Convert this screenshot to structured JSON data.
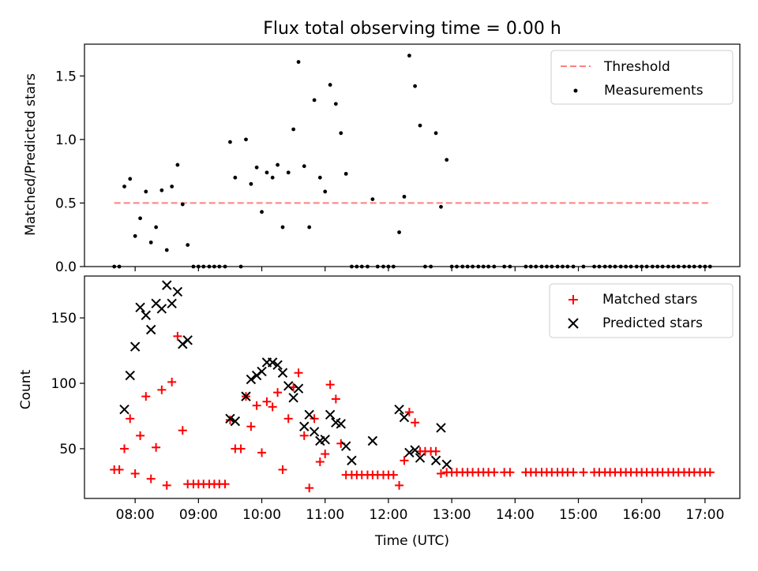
{
  "chart_data": [
    {
      "type": "scatter",
      "title": "Flux total observing time = 0.00 h",
      "xlabel": "",
      "ylabel": "Matched/Predicted stars",
      "xlim": [
        7.2,
        17.55
      ],
      "ylim": [
        0,
        1.75
      ],
      "xticks": [
        8,
        9,
        10,
        11,
        12,
        13,
        14,
        15,
        16,
        17
      ],
      "xtick_labels": [],
      "yticks": [
        0.0,
        0.5,
        1.0,
        1.5
      ],
      "ytick_labels": [
        "0.0",
        "0.5",
        "1.0",
        "1.5"
      ],
      "legend_position": "top-right",
      "threshold": {
        "name": "Threshold",
        "value": 0.5,
        "x": [
          7.67,
          17.1
        ],
        "color": "#ff7f7f"
      },
      "series": [
        {
          "name": "Measurements",
          "marker": "dot",
          "color": "#000000",
          "points": [
            [
              7.67,
              0
            ],
            [
              7.75,
              0
            ],
            [
              7.83,
              0.63
            ],
            [
              7.92,
              0.69
            ],
            [
              8.0,
              0.24
            ],
            [
              8.08,
              0.38
            ],
            [
              8.17,
              0.59
            ],
            [
              8.25,
              0.19
            ],
            [
              8.33,
              0.31
            ],
            [
              8.42,
              0.6
            ],
            [
              8.5,
              0.13
            ],
            [
              8.58,
              0.63
            ],
            [
              8.67,
              0.8
            ],
            [
              8.75,
              0.49
            ],
            [
              8.83,
              0.17
            ],
            [
              8.92,
              0
            ],
            [
              9.0,
              0
            ],
            [
              9.08,
              0
            ],
            [
              9.17,
              0
            ],
            [
              9.25,
              0
            ],
            [
              9.33,
              0
            ],
            [
              9.42,
              0
            ],
            [
              9.5,
              0.98
            ],
            [
              9.58,
              0.7
            ],
            [
              9.67,
              0
            ],
            [
              9.75,
              1.0
            ],
            [
              9.83,
              0.65
            ],
            [
              9.92,
              0.78
            ],
            [
              10.0,
              0.43
            ],
            [
              10.08,
              0.74
            ],
            [
              10.17,
              0.7
            ],
            [
              10.25,
              0.8
            ],
            [
              10.33,
              0.31
            ],
            [
              10.42,
              0.74
            ],
            [
              10.5,
              1.08
            ],
            [
              10.58,
              1.61
            ],
            [
              10.67,
              0.79
            ],
            [
              10.75,
              0.31
            ],
            [
              10.83,
              1.31
            ],
            [
              10.92,
              0.7
            ],
            [
              11.0,
              0.59
            ],
            [
              11.08,
              1.43
            ],
            [
              11.17,
              1.28
            ],
            [
              11.25,
              1.05
            ],
            [
              11.33,
              0.73
            ],
            [
              11.42,
              0
            ],
            [
              11.5,
              0
            ],
            [
              11.58,
              0
            ],
            [
              11.67,
              0
            ],
            [
              11.75,
              0.53
            ],
            [
              11.83,
              0
            ],
            [
              11.92,
              0
            ],
            [
              12.0,
              0
            ],
            [
              12.08,
              0
            ],
            [
              12.17,
              0.27
            ],
            [
              12.25,
              0.55
            ],
            [
              12.33,
              1.66
            ],
            [
              12.42,
              1.42
            ],
            [
              12.5,
              1.11
            ],
            [
              12.58,
              0
            ],
            [
              12.67,
              0
            ],
            [
              12.75,
              1.05
            ],
            [
              12.83,
              0.47
            ],
            [
              12.92,
              0.84
            ],
            [
              13.0,
              0
            ],
            [
              13.08,
              0
            ],
            [
              13.17,
              0
            ],
            [
              13.25,
              0
            ],
            [
              13.33,
              0
            ],
            [
              13.42,
              0
            ],
            [
              13.5,
              0
            ],
            [
              13.58,
              0
            ],
            [
              13.67,
              0
            ],
            [
              13.83,
              0
            ],
            [
              13.92,
              0
            ],
            [
              14.17,
              0
            ],
            [
              14.25,
              0
            ],
            [
              14.33,
              0
            ],
            [
              14.42,
              0
            ],
            [
              14.5,
              0
            ],
            [
              14.58,
              0
            ],
            [
              14.67,
              0
            ],
            [
              14.75,
              0
            ],
            [
              14.83,
              0
            ],
            [
              14.92,
              0
            ],
            [
              15.08,
              0
            ],
            [
              15.25,
              0
            ],
            [
              15.33,
              0
            ],
            [
              15.42,
              0
            ],
            [
              15.5,
              0
            ],
            [
              15.58,
              0
            ],
            [
              15.67,
              0
            ],
            [
              15.75,
              0
            ],
            [
              15.83,
              0
            ],
            [
              15.92,
              0
            ],
            [
              16.0,
              0
            ],
            [
              16.08,
              0
            ],
            [
              16.17,
              0
            ],
            [
              16.25,
              0
            ],
            [
              16.33,
              0
            ],
            [
              16.42,
              0
            ],
            [
              16.5,
              0
            ],
            [
              16.58,
              0
            ],
            [
              16.67,
              0
            ],
            [
              16.75,
              0
            ],
            [
              16.83,
              0
            ],
            [
              16.92,
              0
            ],
            [
              17.0,
              0
            ],
            [
              17.08,
              0
            ]
          ]
        }
      ]
    },
    {
      "type": "scatter",
      "title": "",
      "xlabel": "Time (UTC)",
      "ylabel": "Count",
      "xlim": [
        7.2,
        17.55
      ],
      "ylim": [
        12,
        182
      ],
      "xticks": [
        8,
        9,
        10,
        11,
        12,
        13,
        14,
        15,
        16,
        17
      ],
      "xtick_labels": [
        "08:00",
        "09:00",
        "10:00",
        "11:00",
        "12:00",
        "13:00",
        "14:00",
        "15:00",
        "16:00",
        "17:00"
      ],
      "yticks": [
        50,
        100,
        150
      ],
      "ytick_labels": [
        "50",
        "100",
        "150"
      ],
      "legend_position": "top-right",
      "series": [
        {
          "name": "Matched stars",
          "marker": "plus",
          "color": "#ff0000",
          "points": [
            [
              7.67,
              34
            ],
            [
              7.75,
              34
            ],
            [
              7.83,
              50
            ],
            [
              7.92,
              73
            ],
            [
              8.0,
              31
            ],
            [
              8.08,
              60
            ],
            [
              8.17,
              90
            ],
            [
              8.25,
              27
            ],
            [
              8.33,
              51
            ],
            [
              8.42,
              95
            ],
            [
              8.5,
              22
            ],
            [
              8.58,
              101
            ],
            [
              8.67,
              136
            ],
            [
              8.75,
              64
            ],
            [
              8.83,
              23
            ],
            [
              8.92,
              23
            ],
            [
              9.0,
              23
            ],
            [
              9.08,
              23
            ],
            [
              9.17,
              23
            ],
            [
              9.25,
              23
            ],
            [
              9.33,
              23
            ],
            [
              9.42,
              23
            ],
            [
              9.5,
              72
            ],
            [
              9.58,
              50
            ],
            [
              9.67,
              50
            ],
            [
              9.75,
              90
            ],
            [
              9.83,
              67
            ],
            [
              9.92,
              83
            ],
            [
              10.0,
              47
            ],
            [
              10.08,
              86
            ],
            [
              10.17,
              82
            ],
            [
              10.25,
              93
            ],
            [
              10.33,
              34
            ],
            [
              10.42,
              73
            ],
            [
              10.5,
              97
            ],
            [
              10.58,
              108
            ],
            [
              10.67,
              60
            ],
            [
              10.75,
              20
            ],
            [
              10.83,
              73
            ],
            [
              10.92,
              40
            ],
            [
              11.0,
              46
            ],
            [
              11.08,
              99
            ],
            [
              11.17,
              88
            ],
            [
              11.25,
              54
            ],
            [
              11.33,
              30
            ],
            [
              11.42,
              30
            ],
            [
              11.5,
              30
            ],
            [
              11.58,
              30
            ],
            [
              11.67,
              30
            ],
            [
              11.75,
              30
            ],
            [
              11.83,
              30
            ],
            [
              11.92,
              30
            ],
            [
              12.0,
              30
            ],
            [
              12.08,
              30
            ],
            [
              12.17,
              22
            ],
            [
              12.25,
              41
            ],
            [
              12.33,
              78
            ],
            [
              12.42,
              70
            ],
            [
              12.5,
              48
            ],
            [
              12.58,
              48
            ],
            [
              12.67,
              48
            ],
            [
              12.75,
              48
            ],
            [
              12.83,
              31
            ],
            [
              12.92,
              32
            ],
            [
              13.0,
              32
            ],
            [
              13.08,
              32
            ],
            [
              13.17,
              32
            ],
            [
              13.25,
              32
            ],
            [
              13.33,
              32
            ],
            [
              13.42,
              32
            ],
            [
              13.5,
              32
            ],
            [
              13.58,
              32
            ],
            [
              13.67,
              32
            ],
            [
              13.83,
              32
            ],
            [
              13.92,
              32
            ],
            [
              14.17,
              32
            ],
            [
              14.25,
              32
            ],
            [
              14.33,
              32
            ],
            [
              14.42,
              32
            ],
            [
              14.5,
              32
            ],
            [
              14.58,
              32
            ],
            [
              14.67,
              32
            ],
            [
              14.75,
              32
            ],
            [
              14.83,
              32
            ],
            [
              14.92,
              32
            ],
            [
              15.08,
              32
            ],
            [
              15.25,
              32
            ],
            [
              15.33,
              32
            ],
            [
              15.42,
              32
            ],
            [
              15.5,
              32
            ],
            [
              15.58,
              32
            ],
            [
              15.67,
              32
            ],
            [
              15.75,
              32
            ],
            [
              15.83,
              32
            ],
            [
              15.92,
              32
            ],
            [
              16.0,
              32
            ],
            [
              16.08,
              32
            ],
            [
              16.17,
              32
            ],
            [
              16.25,
              32
            ],
            [
              16.33,
              32
            ],
            [
              16.42,
              32
            ],
            [
              16.5,
              32
            ],
            [
              16.58,
              32
            ],
            [
              16.67,
              32
            ],
            [
              16.75,
              32
            ],
            [
              16.83,
              32
            ],
            [
              16.92,
              32
            ],
            [
              17.0,
              32
            ],
            [
              17.08,
              32
            ]
          ]
        },
        {
          "name": "Predicted stars",
          "marker": "x",
          "color": "#000000",
          "points": [
            [
              7.83,
              80
            ],
            [
              7.92,
              106
            ],
            [
              8.0,
              128
            ],
            [
              8.08,
              158
            ],
            [
              8.17,
              152
            ],
            [
              8.25,
              141
            ],
            [
              8.33,
              161
            ],
            [
              8.42,
              157
            ],
            [
              8.5,
              175
            ],
            [
              8.58,
              161
            ],
            [
              8.67,
              170
            ],
            [
              8.75,
              130
            ],
            [
              8.83,
              133
            ],
            [
              9.5,
              73
            ],
            [
              9.58,
              71
            ],
            [
              9.75,
              90
            ],
            [
              9.83,
              103
            ],
            [
              9.92,
              106
            ],
            [
              10.0,
              109
            ],
            [
              10.08,
              116
            ],
            [
              10.17,
              116
            ],
            [
              10.25,
              114
            ],
            [
              10.33,
              108
            ],
            [
              10.42,
              98
            ],
            [
              10.5,
              89
            ],
            [
              10.58,
              96
            ],
            [
              10.67,
              67
            ],
            [
              10.75,
              76
            ],
            [
              10.83,
              63
            ],
            [
              10.92,
              56
            ],
            [
              11.0,
              57
            ],
            [
              11.08,
              76
            ],
            [
              11.17,
              70
            ],
            [
              11.25,
              69
            ],
            [
              11.33,
              52
            ],
            [
              11.42,
              41
            ],
            [
              11.75,
              56
            ],
            [
              12.17,
              80
            ],
            [
              12.25,
              74
            ],
            [
              12.33,
              47
            ],
            [
              12.42,
              49
            ],
            [
              12.5,
              43
            ],
            [
              12.75,
              41
            ],
            [
              12.83,
              66
            ],
            [
              12.92,
              38
            ]
          ]
        }
      ]
    }
  ]
}
